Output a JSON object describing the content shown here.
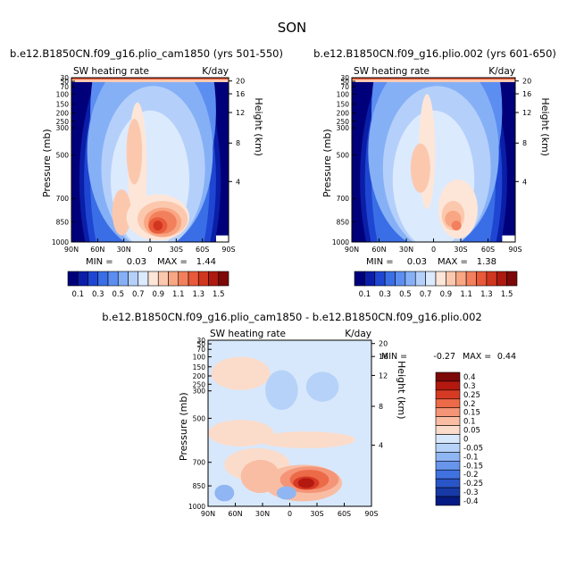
{
  "page_title": "SON",
  "chart_data": [
    {
      "type": "heatmap",
      "title": "b.e12.B1850CN.f09_g16.plio_cam1850 (yrs 501-550)",
      "variable": "SW heating rate",
      "units": "K/day",
      "ylabel": "Pressure (mb)",
      "y2label": "Height (km)",
      "xticks": [
        "90N",
        "60N",
        "30N",
        "0",
        "30S",
        "60S",
        "90S"
      ],
      "yticks": [
        "30",
        "50",
        "70",
        "100",
        "150",
        "200",
        "250",
        "300",
        "500",
        "700",
        "850",
        "1000"
      ],
      "y2ticks": [
        "20",
        "16",
        "12",
        "8",
        "4"
      ],
      "min_label": "MIN =",
      "min": "0.03",
      "max_label": "MAX =",
      "max": "1.44",
      "colorbar": [
        "0.1",
        "0.3",
        "0.5",
        "0.7",
        "0.9",
        "1.1",
        "1.3",
        "1.5"
      ]
    },
    {
      "type": "heatmap",
      "title": "b.e12.B1850CN.f09_g16.plio.002 (yrs 601-650)",
      "variable": "SW heating rate",
      "units": "K/day",
      "ylabel": "Pressure (mb)",
      "y2label": "Height (km)",
      "xticks": [
        "90N",
        "60N",
        "30N",
        "0",
        "30S",
        "60S",
        "90S"
      ],
      "yticks": [
        "30",
        "50",
        "70",
        "100",
        "150",
        "200",
        "250",
        "300",
        "500",
        "700",
        "850",
        "1000"
      ],
      "y2ticks": [
        "20",
        "16",
        "12",
        "8",
        "4"
      ],
      "min_label": "MIN =",
      "min": "0.03",
      "max_label": "MAX =",
      "max": "1.38",
      "colorbar": [
        "0.1",
        "0.3",
        "0.5",
        "0.7",
        "0.9",
        "1.1",
        "1.3",
        "1.5"
      ]
    },
    {
      "type": "heatmap",
      "title": "b.e12.B1850CN.f09_g16.plio_cam1850 - b.e12.B1850CN.f09_g16.plio.002",
      "variable": "SW heating rate",
      "units": "K/day",
      "ylabel": "Pressure (mb)",
      "y2label": "Height (km)",
      "xticks": [
        "90N",
        "60N",
        "30N",
        "0",
        "30S",
        "60S",
        "90S"
      ],
      "yticks": [
        "30",
        "50",
        "70",
        "100",
        "150",
        "200",
        "250",
        "300",
        "500",
        "700",
        "850",
        "1000"
      ],
      "y2ticks": [
        "20",
        "16",
        "12",
        "8",
        "4"
      ],
      "min_label": "MIN =",
      "min": "-0.27",
      "max_label": "MAX =",
      "max": "0.44",
      "colorbar": [
        "0.4",
        "0.3",
        "0.25",
        "0.2",
        "0.15",
        "0.1",
        "0.05",
        "0",
        "-0.05",
        "-0.1",
        "-0.15",
        "-0.2",
        "-0.25",
        "-0.3",
        "-0.4"
      ]
    }
  ],
  "colors": {
    "abs_scale": [
      "#00007a",
      "#0a1ea8",
      "#1e46d2",
      "#3a6ee6",
      "#5b8ef0",
      "#86b0f6",
      "#b4d0fa",
      "#dceafe",
      "#fde6d8",
      "#fbc8ae",
      "#f8a683",
      "#f3805c",
      "#e85a3a",
      "#d1361f",
      "#ad1a10",
      "#7d0808"
    ],
    "diff_scale": [
      "#7d0808",
      "#b3190f",
      "#d73a24",
      "#ec6a48",
      "#f59577",
      "#f9bda4",
      "#fbdcca",
      "#d8e8fc",
      "#b6d2f8",
      "#8fb6f3",
      "#6795ec",
      "#4072e0",
      "#2a55c8",
      "#173aa6",
      "#061a84"
    ]
  }
}
